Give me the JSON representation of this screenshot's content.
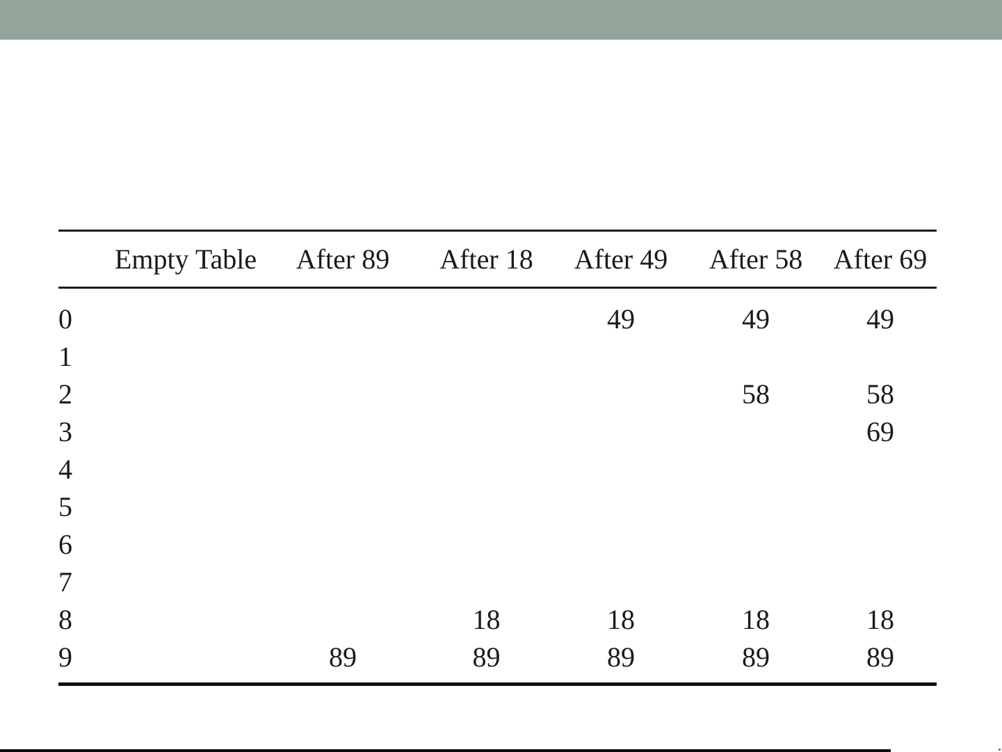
{
  "slide": {
    "background_color": "#ffffff",
    "top_bar_color": "#93A49B",
    "bottom_bar_color": "#0d0d0d",
    "rule_color": "#1b1b1b"
  },
  "table": {
    "columns": [
      "",
      "Empty Table",
      "After 89",
      "After 18",
      "After 49",
      "After 58",
      "After 69"
    ],
    "rows": [
      {
        "index": "0",
        "cells": [
          "",
          "",
          "",
          "49",
          "49",
          "49"
        ]
      },
      {
        "index": "1",
        "cells": [
          "",
          "",
          "",
          "",
          "",
          ""
        ]
      },
      {
        "index": "2",
        "cells": [
          "",
          "",
          "",
          "",
          "58",
          "58"
        ]
      },
      {
        "index": "3",
        "cells": [
          "",
          "",
          "",
          "",
          "",
          "69"
        ]
      },
      {
        "index": "4",
        "cells": [
          "",
          "",
          "",
          "",
          "",
          ""
        ]
      },
      {
        "index": "5",
        "cells": [
          "",
          "",
          "",
          "",
          "",
          ""
        ]
      },
      {
        "index": "6",
        "cells": [
          "",
          "",
          "",
          "",
          "",
          ""
        ]
      },
      {
        "index": "7",
        "cells": [
          "",
          "",
          "",
          "",
          "",
          ""
        ]
      },
      {
        "index": "8",
        "cells": [
          "",
          "",
          "18",
          "18",
          "18",
          "18"
        ]
      },
      {
        "index": "9",
        "cells": [
          "",
          "89",
          "89",
          "89",
          "89",
          "89"
        ]
      }
    ]
  }
}
